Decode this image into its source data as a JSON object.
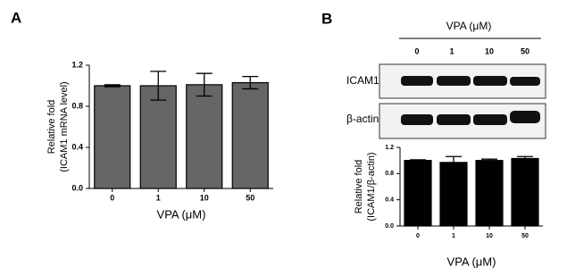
{
  "panel_labels": [
    "A",
    "B"
  ],
  "blot": {
    "header": "VPA (μM)",
    "lanes": [
      "0",
      "1",
      "10",
      "50"
    ],
    "rows": [
      "ICAM1",
      "β-actin"
    ]
  },
  "chart_data": [
    {
      "type": "bar",
      "ylabel": [
        "Relative fold",
        "(ICAM1  mRNA level)"
      ],
      "xlabel": "VPA (μM)",
      "categories": [
        "0",
        "1",
        "10",
        "50"
      ],
      "values": [
        1.0,
        1.0,
        1.01,
        1.03
      ],
      "errors": [
        0.01,
        0.14,
        0.11,
        0.06
      ],
      "color": "#666666",
      "ylim": [
        0,
        1.2
      ],
      "yticks": [
        {
          "value": 0,
          "label": "0.0"
        },
        0.4,
        0.8,
        1.2
      ]
    },
    {
      "type": "bar",
      "ylabel": [
        "Relative fold",
        "(ICAM1/β-actin)"
      ],
      "xlabel": "VPA (μM)",
      "categories": [
        "0",
        "1",
        "10",
        "50"
      ],
      "values": [
        1.0,
        0.97,
        1.0,
        1.03
      ],
      "errors": [
        0.01,
        0.09,
        0.02,
        0.03
      ],
      "color": "#000000",
      "ylim": [
        0,
        1.2
      ],
      "yticks": [
        {
          "value": 0,
          "label": "0.0"
        },
        0.4,
        0.8,
        1.2
      ]
    }
  ]
}
